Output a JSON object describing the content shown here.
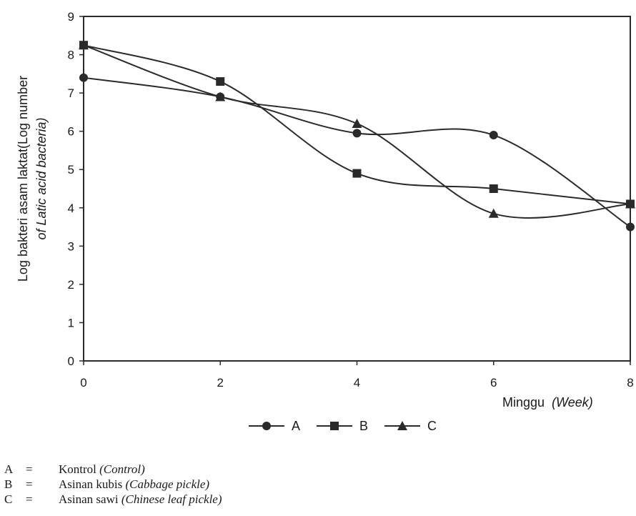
{
  "chart_data": {
    "type": "line",
    "x": [
      0,
      2,
      4,
      6,
      8
    ],
    "xlim": [
      0,
      8
    ],
    "ylim": [
      0,
      9
    ],
    "xticks": [
      "0",
      "2",
      "4",
      "6",
      "8"
    ],
    "yticks": [
      "0",
      "1",
      "2",
      "3",
      "4",
      "5",
      "6",
      "7",
      "8",
      "9"
    ],
    "xlabel": {
      "main": "Minggu",
      "translation": "(Week)"
    },
    "ylabel": {
      "line1": "Log bakteri asam laktat(Log number",
      "line2": "of Latic acid bacteria)"
    },
    "grid": false,
    "legend_position": "bottom-center",
    "series": [
      {
        "name": "A",
        "marker": "circle",
        "values": [
          7.4,
          6.9,
          5.95,
          5.9,
          3.5
        ]
      },
      {
        "name": "B",
        "marker": "square",
        "values": [
          8.25,
          7.3,
          4.9,
          4.5,
          4.1
        ]
      },
      {
        "name": "C",
        "marker": "triangle",
        "values": [
          8.25,
          6.9,
          6.2,
          3.85,
          4.1
        ]
      }
    ],
    "line_color": "#2a2a2a"
  },
  "notes": [
    {
      "key": "A",
      "eq": "=",
      "text": "Kontrol ",
      "italic": "(Control)"
    },
    {
      "key": "B",
      "eq": "=",
      "text": "Asinan kubis ",
      "italic": "(Cabbage pickle)"
    },
    {
      "key": "C",
      "eq": "=",
      "text": "Asinan sawi ",
      "italic": "(Chinese leaf pickle)"
    }
  ]
}
